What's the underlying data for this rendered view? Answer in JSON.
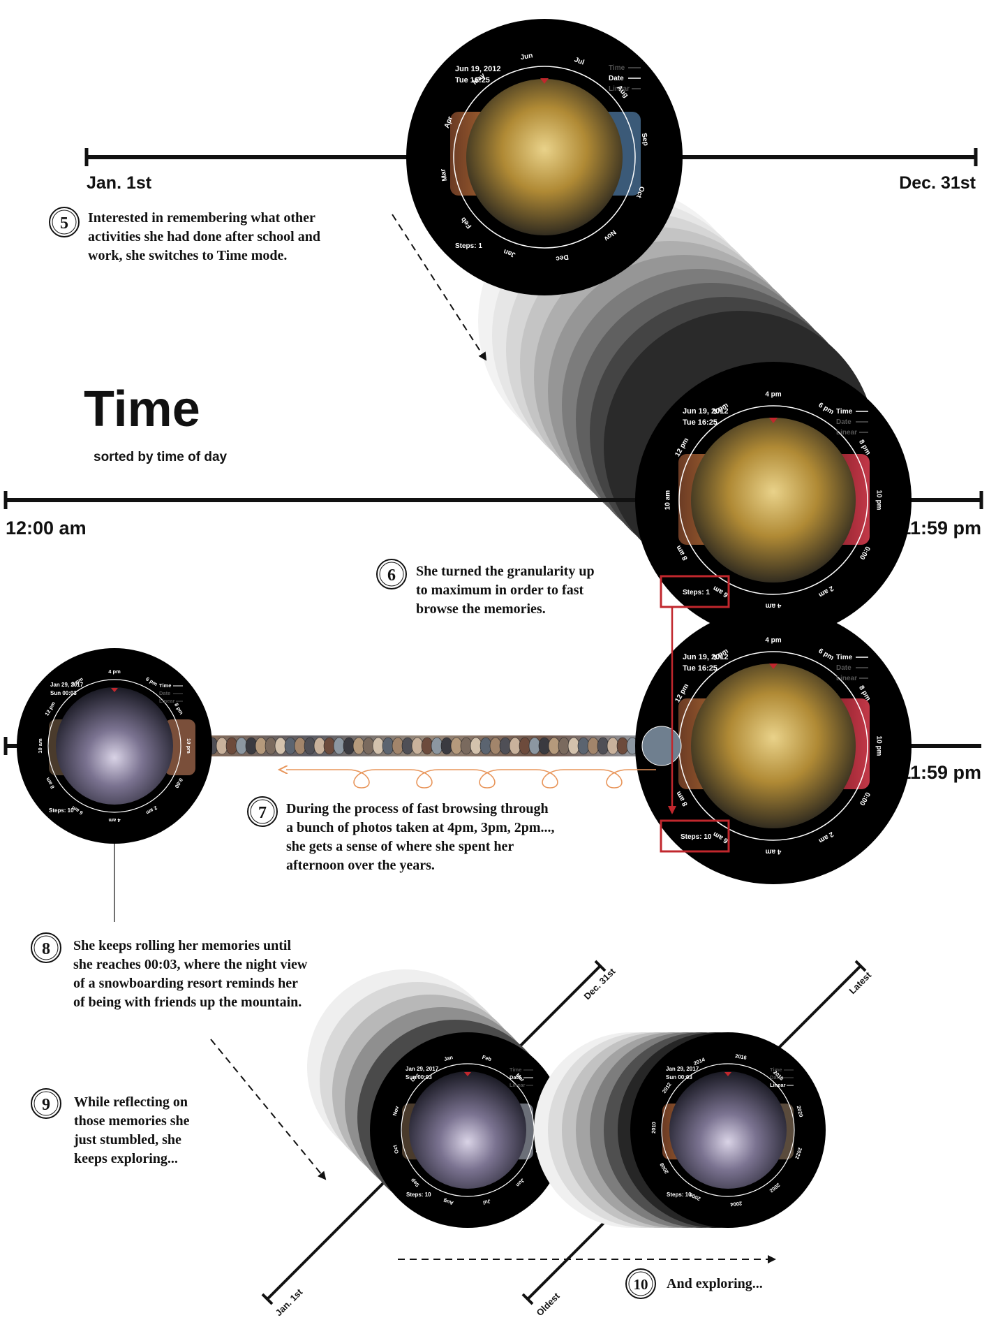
{
  "scene1": {
    "axis_start": "Jan. 1st",
    "axis_end": "Dec. 31st",
    "dial": {
      "date": "Jun 19, 2012",
      "time": "Tue 16:25",
      "modes": [
        "Time",
        "Date",
        "Linear"
      ],
      "active_mode": "Date",
      "steps": "Steps: 1",
      "ticks": [
        "Jun",
        "Jul",
        "Aug",
        "Sep",
        "Oct",
        "Nov",
        "Dec",
        "Jan",
        "Feb",
        "Mar",
        "Apr",
        "May"
      ]
    }
  },
  "step5": {
    "num": "5",
    "lines": [
      "Interested in remembering what other",
      "activities she had done after school and",
      "work, she switches to Time mode."
    ]
  },
  "section": {
    "title": "Time",
    "subtitle": "sorted by time of day"
  },
  "scene2": {
    "axis_start": "12:00 am",
    "axis_end": "11:59 pm",
    "dial": {
      "date": "Jun 19, 2012",
      "time": "Tue 16:25",
      "modes": [
        "Time",
        "Date",
        "Linear"
      ],
      "active_mode": "Time",
      "steps": "Steps: 1",
      "ticks": [
        "4 pm",
        "6 pm",
        "8 pm",
        "10 pm",
        "0:00",
        "2 am",
        "4 am",
        "6 am",
        "8 am",
        "10 am",
        "12 pm",
        "2 pm"
      ]
    }
  },
  "step6": {
    "num": "6",
    "lines": [
      "She turned the granularity up",
      "to maximum in order to fast",
      "browse the memories."
    ]
  },
  "scene3": {
    "axis_end": "11:59 pm",
    "dial_right": {
      "date": "Jun 19, 2012",
      "time": "Tue 16:25",
      "modes": [
        "Time",
        "Date",
        "Linear"
      ],
      "active_mode": "Time",
      "steps": "Steps: 10",
      "ticks": [
        "4 pm",
        "6 pm",
        "8 pm",
        "10 pm",
        "0:00",
        "2 am",
        "4 am",
        "6 am",
        "8 am",
        "10 am",
        "12 pm",
        "2 pm"
      ]
    },
    "dial_left": {
      "date": "Jan 29, 2017",
      "time": "Sun 00:03",
      "modes": [
        "Time",
        "Date",
        "Linear"
      ],
      "active_mode": "Time",
      "steps": "Steps: 10",
      "ticks": [
        "4 pm",
        "6 pm",
        "8 pm",
        "10 pm",
        "0:00",
        "2 am",
        "4 am",
        "6 am",
        "8 am",
        "10 am",
        "12 pm",
        "2 pm"
      ]
    }
  },
  "step7": {
    "num": "7",
    "lines": [
      "During the process of fast browsing through",
      "a bunch of photos taken at 4pm, 3pm, 2pm...,",
      "she gets a sense of where she spent her",
      "afternoon over the years."
    ]
  },
  "step8": {
    "num": "8",
    "lines": [
      "She keeps rolling her memories until",
      "she reaches 00:03, where the night view",
      "of a snowboarding resort reminds her",
      "of being with friends up the mountain."
    ]
  },
  "step9": {
    "num": "9",
    "lines": [
      "While reflecting on",
      "those memories she",
      "just stumbled, she",
      "keeps exploring..."
    ]
  },
  "scene4": {
    "axis_a_start": "Jan. 1st",
    "axis_a_end": "Dec. 31st",
    "axis_b_start": "Oldest",
    "axis_b_end": "Latest",
    "dial_date": {
      "date": "Jan 29, 2017",
      "time": "Sun 00:03",
      "modes": [
        "Time",
        "Date",
        "Linear"
      ],
      "active_mode": "Date",
      "steps": "Steps: 10",
      "ticks": [
        "Jan",
        "Feb",
        "Mar",
        "Apr",
        "May",
        "Jun",
        "Jul",
        "Aug",
        "Sep",
        "Oct",
        "Nov",
        "Dec"
      ]
    },
    "dial_linear": {
      "date": "Jan 29, 2017",
      "time": "Sun 00:03",
      "modes": [
        "Time",
        "Date",
        "Linear"
      ],
      "active_mode": "Linear",
      "steps": "Steps: 10",
      "ticks": [
        "2016",
        "2018",
        "2020",
        "2022",
        "2002",
        "2004",
        "2006",
        "2008",
        "2010",
        "2012",
        "2014"
      ]
    }
  },
  "step10": {
    "num": "10",
    "text": "And exploring..."
  },
  "colors": {
    "highlight": "#c1272d",
    "arrow": "#e8955a",
    "dial_bg": "#000000",
    "text": "#111111"
  }
}
